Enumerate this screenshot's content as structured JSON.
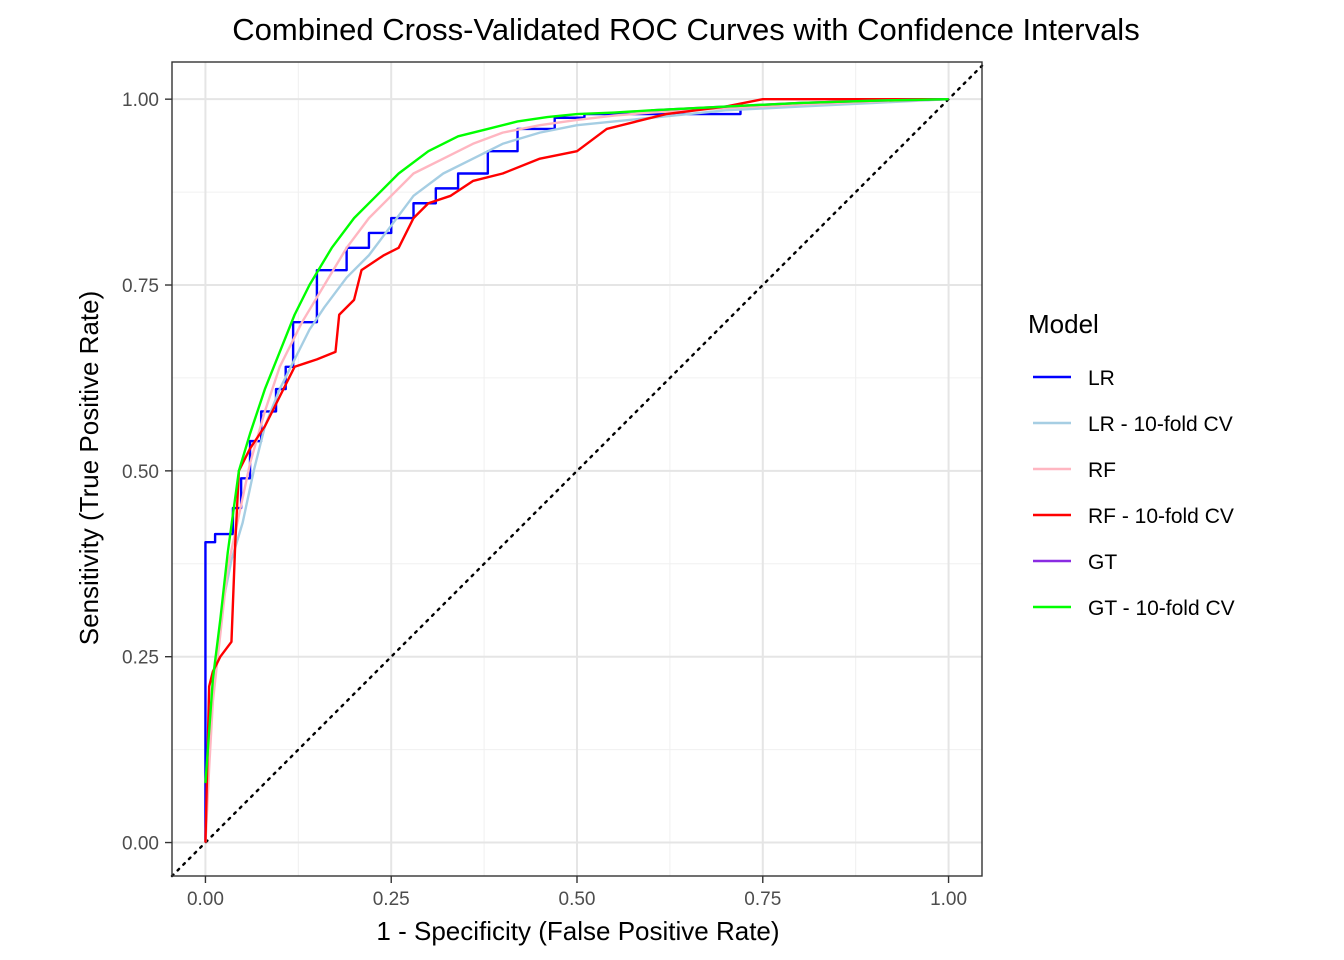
{
  "chart_data": {
    "type": "line",
    "title": "Combined Cross-Validated ROC Curves with Confidence Intervals",
    "xlabel": "1 - Specificity (False Positive Rate)",
    "ylabel": "Sensitivity (True Positive Rate)",
    "xlim": [
      -0.045,
      1.045
    ],
    "ylim": [
      -0.045,
      1.05
    ],
    "x_ticks": [
      0,
      0.25,
      0.5,
      0.75,
      1
    ],
    "x_tick_labels": [
      "0.00",
      "0.25",
      "0.50",
      "0.75",
      "1.00"
    ],
    "y_ticks": [
      0,
      0.25,
      0.5,
      0.75,
      1
    ],
    "y_tick_labels": [
      "0.00",
      "0.25",
      "0.50",
      "0.75",
      "1.00"
    ],
    "grid": true,
    "legend": {
      "title": "Model",
      "position": "right"
    },
    "reference_line": {
      "style": "dotted",
      "color": "#000000",
      "x": [
        -0.045,
        1.045
      ],
      "y": [
        -0.045,
        1.045
      ]
    },
    "series": [
      {
        "name": "LR",
        "color": "#0000ff",
        "step": true,
        "x": [
          0,
          0,
          0.013,
          0.013,
          0.037,
          0.037,
          0.048,
          0.048,
          0.06,
          0.06,
          0.075,
          0.075,
          0.095,
          0.095,
          0.108,
          0.108,
          0.118,
          0.118,
          0.15,
          0.15,
          0.19,
          0.19,
          0.22,
          0.22,
          0.25,
          0.25,
          0.28,
          0.28,
          0.31,
          0.31,
          0.34,
          0.34,
          0.38,
          0.38,
          0.42,
          0.42,
          0.47,
          0.47,
          0.51,
          0.51,
          0.65,
          0.65,
          0.7,
          0.7,
          0.72,
          0.72,
          1
        ],
        "y": [
          0,
          0.404,
          0.404,
          0.415,
          0.415,
          0.45,
          0.45,
          0.49,
          0.49,
          0.54,
          0.54,
          0.58,
          0.58,
          0.61,
          0.61,
          0.64,
          0.64,
          0.7,
          0.7,
          0.77,
          0.77,
          0.8,
          0.8,
          0.82,
          0.82,
          0.84,
          0.84,
          0.86,
          0.86,
          0.88,
          0.88,
          0.9,
          0.9,
          0.93,
          0.93,
          0.96,
          0.96,
          0.975,
          0.975,
          0.98,
          0.98,
          0.98,
          0.98,
          0.98,
          0.98,
          0.99,
          1
        ]
      },
      {
        "name": "LR - 10-fold CV",
        "color": "#a6cee3",
        "step": false,
        "x": [
          0,
          0.004,
          0.008,
          0.015,
          0.025,
          0.035,
          0.05,
          0.065,
          0.08,
          0.1,
          0.12,
          0.14,
          0.16,
          0.19,
          0.22,
          0.25,
          0.28,
          0.32,
          0.36,
          0.4,
          0.45,
          0.5,
          0.55,
          0.6,
          0.7,
          0.8,
          0.9,
          1
        ],
        "y": [
          0,
          0.09,
          0.17,
          0.25,
          0.33,
          0.38,
          0.43,
          0.5,
          0.56,
          0.61,
          0.65,
          0.69,
          0.72,
          0.76,
          0.79,
          0.83,
          0.87,
          0.9,
          0.92,
          0.94,
          0.955,
          0.965,
          0.97,
          0.975,
          0.985,
          0.99,
          0.995,
          1
        ]
      },
      {
        "name": "RF",
        "color": "#ffb6c1",
        "step": false,
        "x": [
          0,
          0.005,
          0.01,
          0.02,
          0.03,
          0.045,
          0.06,
          0.08,
          0.1,
          0.13,
          0.16,
          0.19,
          0.22,
          0.25,
          0.28,
          0.32,
          0.36,
          0.4,
          0.45,
          0.5,
          0.55,
          0.6,
          0.7,
          0.8,
          0.9,
          1
        ],
        "y": [
          0,
          0.1,
          0.19,
          0.28,
          0.37,
          0.44,
          0.51,
          0.58,
          0.64,
          0.7,
          0.75,
          0.8,
          0.84,
          0.87,
          0.9,
          0.92,
          0.94,
          0.955,
          0.965,
          0.972,
          0.978,
          0.982,
          0.988,
          0.993,
          0.997,
          1
        ]
      },
      {
        "name": "RF - 10-fold CV",
        "color": "#ff0000",
        "step": false,
        "x": [
          0,
          0.005,
          0.01,
          0.02,
          0.035,
          0.04,
          0.045,
          0.06,
          0.08,
          0.1,
          0.12,
          0.135,
          0.15,
          0.175,
          0.18,
          0.2,
          0.21,
          0.24,
          0.26,
          0.28,
          0.3,
          0.33,
          0.36,
          0.4,
          0.45,
          0.5,
          0.54,
          0.58,
          0.62,
          0.66,
          0.7,
          0.75,
          0.8,
          0.9,
          1
        ],
        "y": [
          0,
          0.21,
          0.23,
          0.25,
          0.27,
          0.4,
          0.5,
          0.53,
          0.56,
          0.6,
          0.64,
          0.645,
          0.65,
          0.66,
          0.71,
          0.73,
          0.77,
          0.79,
          0.8,
          0.84,
          0.86,
          0.87,
          0.89,
          0.9,
          0.92,
          0.93,
          0.96,
          0.97,
          0.98,
          0.985,
          0.99,
          1,
          1,
          1,
          1
        ]
      },
      {
        "name": "GT",
        "color": "#8a2be2",
        "step": false,
        "x": [
          0.6,
          0.7,
          0.8,
          0.9,
          1
        ],
        "y": [
          0.985,
          0.99,
          0.995,
          0.998,
          1
        ]
      },
      {
        "name": "GT - 10-fold CV",
        "color": "#00ff00",
        "step": false,
        "x": [
          0,
          0.005,
          0.01,
          0.02,
          0.03,
          0.045,
          0.06,
          0.08,
          0.1,
          0.12,
          0.14,
          0.17,
          0.2,
          0.23,
          0.26,
          0.3,
          0.34,
          0.38,
          0.42,
          0.46,
          0.5,
          0.55,
          0.6,
          0.7,
          0.8,
          0.9,
          1
        ],
        "y": [
          0.08,
          0.15,
          0.22,
          0.3,
          0.39,
          0.5,
          0.55,
          0.61,
          0.66,
          0.71,
          0.75,
          0.8,
          0.84,
          0.87,
          0.9,
          0.93,
          0.95,
          0.96,
          0.97,
          0.976,
          0.98,
          0.982,
          0.985,
          0.99,
          0.995,
          0.998,
          1
        ]
      }
    ]
  }
}
